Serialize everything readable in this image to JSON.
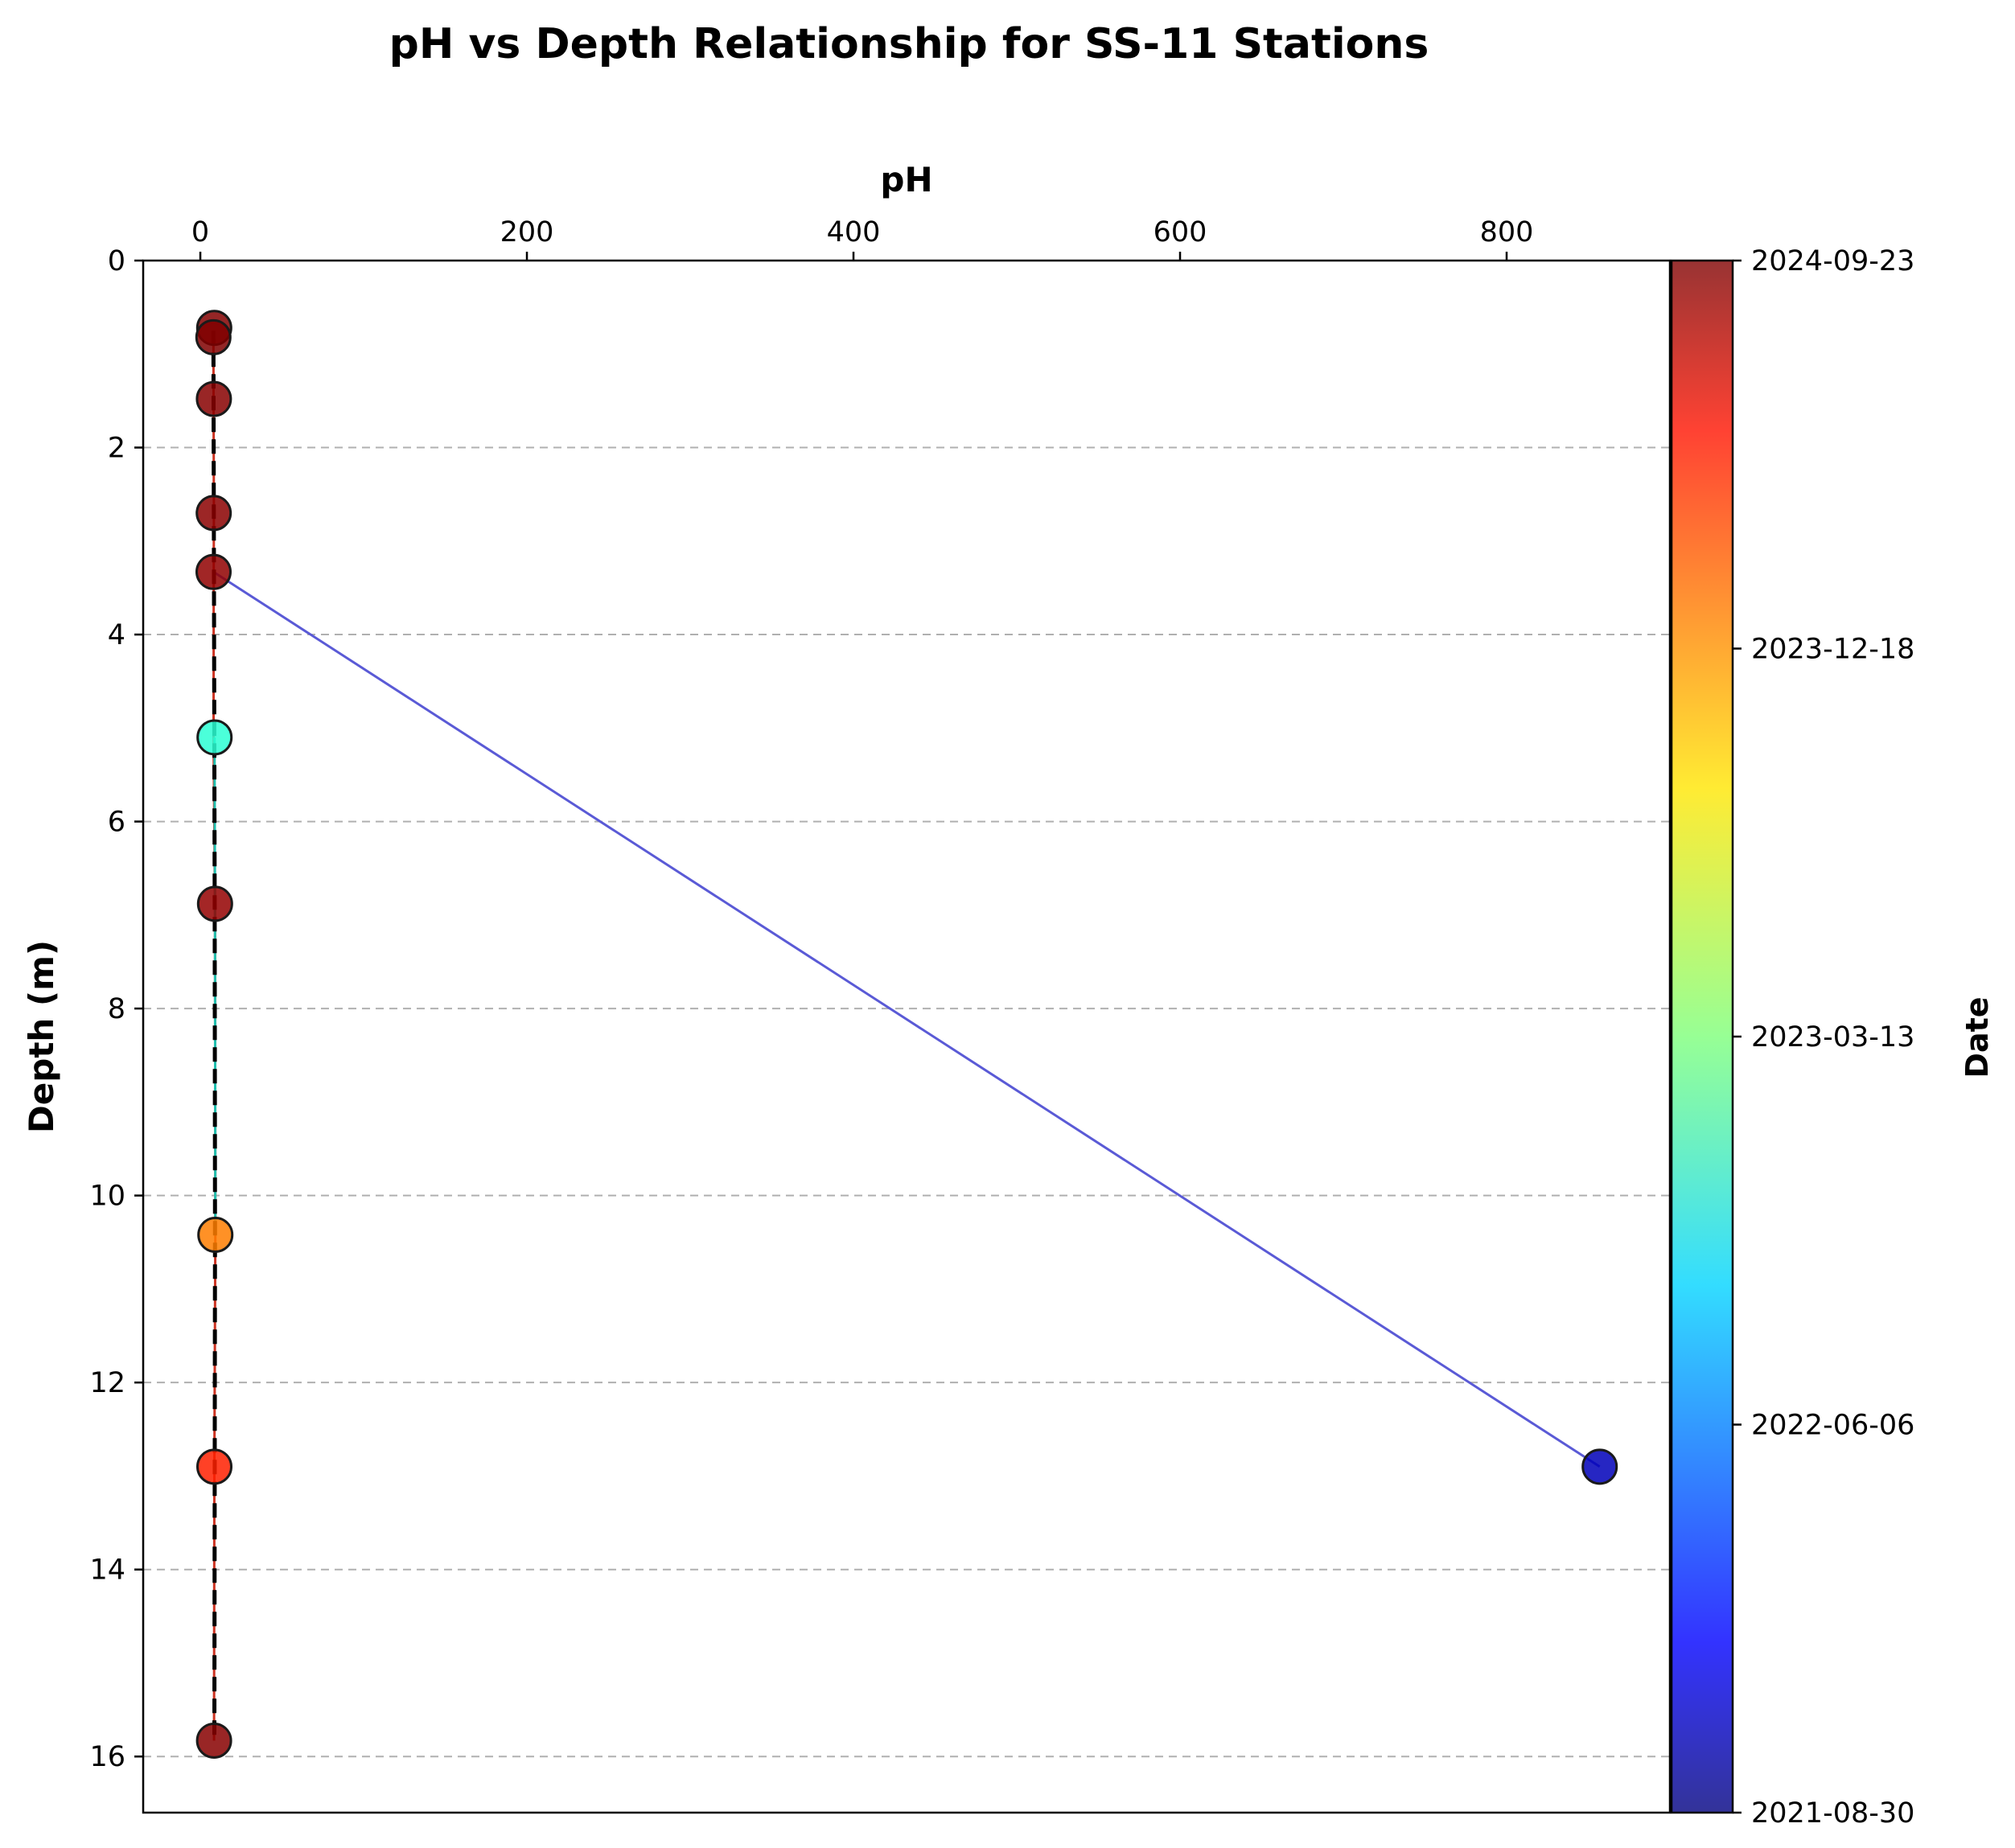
{
  "chart_data": {
    "type": "scatter",
    "title": "pH vs Depth Relationship for SS-11 Stations",
    "xlabel": "pH",
    "ylabel": "Depth (m)",
    "xlim": [
      -35,
      900
    ],
    "ylim": [
      16.6,
      0
    ],
    "x_ticks": [
      0,
      200,
      400,
      600,
      800
    ],
    "y_ticks": [
      0,
      2,
      4,
      6,
      8,
      10,
      12,
      14,
      16
    ],
    "x_axis_position": "top",
    "y_axis_inverted": true,
    "grid": "horizontal dashed",
    "colorbar": {
      "label": "Date",
      "colormap": "jet",
      "range": [
        "2021-08-30",
        "2024-09-23"
      ],
      "ticks": [
        "2021-08-30",
        "2022-06-06",
        "2023-03-13",
        "2023-12-18",
        "2024-09-23"
      ]
    },
    "points": [
      {
        "x": 8.5,
        "y": 0.72,
        "date": "2024-09-20"
      },
      {
        "x": 8.0,
        "y": 0.82,
        "date": "2024-09-22"
      },
      {
        "x": 8.3,
        "y": 1.48,
        "date": "2024-09-15"
      },
      {
        "x": 8.2,
        "y": 2.7,
        "date": "2024-09-10"
      },
      {
        "x": 8.1,
        "y": 3.33,
        "date": "2024-09-05"
      },
      {
        "x": 8.7,
        "y": 5.1,
        "date": "2022-12-10"
      },
      {
        "x": 9.0,
        "y": 6.88,
        "date": "2024-09-01"
      },
      {
        "x": 9.2,
        "y": 10.42,
        "date": "2023-12-20"
      },
      {
        "x": 8.6,
        "y": 12.9,
        "date": "2024-04-01"
      },
      {
        "x": 857,
        "y": 12.9,
        "date": "2021-11-01"
      },
      {
        "x": 8.4,
        "y": 15.83,
        "date": "2024-09-15"
      }
    ],
    "series": [
      {
        "color": "#5a5ad6",
        "style": "solid",
        "x": [
          8.1,
          857
        ],
        "y": [
          3.33,
          12.9
        ]
      },
      {
        "color": "#cc3322",
        "style": "solid",
        "x": [
          8.0,
          8.1,
          8.3,
          8.2,
          8.1,
          9.0,
          9.2,
          8.6,
          8.4
        ],
        "y": [
          0.75,
          1.48,
          2.7,
          3.33,
          5.1,
          6.88,
          10.42,
          12.9,
          15.83
        ]
      },
      {
        "color": "#20c0b0",
        "style": "solid",
        "x": [
          8.7,
          9.0,
          9.2
        ],
        "y": [
          5.1,
          6.88,
          10.42
        ]
      },
      {
        "color": "#000000",
        "style": "dashed",
        "x": [
          8.0,
          8.8,
          9.0,
          8.6
        ],
        "y": [
          0.75,
          6.88,
          10.42,
          15.83
        ]
      }
    ]
  }
}
